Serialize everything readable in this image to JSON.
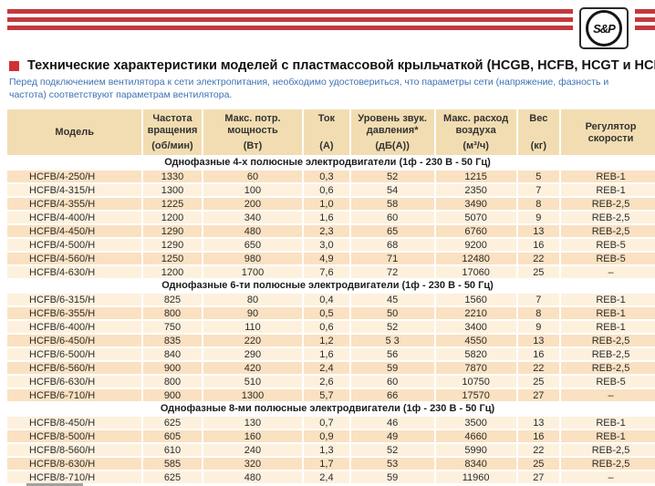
{
  "logo": {
    "text": "S&P"
  },
  "title": {
    "text": "Технические характеристики моделей с пластмассовой крыльчаткой (HCGB, HCFB, HCGT и HCFT)"
  },
  "intro": "Перед подключением вентилятора к сети электропитания, необходимо удостовериться, что параметры сети (напряжение, фазность и частота) соответствуют параметрам вентилятора.",
  "colors": {
    "stripe_red": "#c4383c",
    "bullet_red": "#cf3034",
    "intro_blue": "#3d72b4",
    "header_band": "#f2ddb2",
    "row_peach": "#fae1c1",
    "row_cream": "#fdf1de"
  },
  "table": {
    "columns": [
      {
        "key": "model",
        "label": "Модель",
        "unit": ""
      },
      {
        "key": "rpm",
        "label": "Частота вращения",
        "unit": "(об/мин)"
      },
      {
        "key": "power",
        "label": "Макс. потр. мощность",
        "unit": "(Вт)"
      },
      {
        "key": "current",
        "label": "Ток",
        "unit": "(А)"
      },
      {
        "key": "noise",
        "label": "Уровень звук. давления*",
        "unit": "(дБ(А))"
      },
      {
        "key": "airflow",
        "label": "Макс. расход воздуха",
        "unit": "(м³/ч)"
      },
      {
        "key": "weight",
        "label": "Вес",
        "unit": "(кг)"
      },
      {
        "key": "regulator",
        "label": "Регулятор скорости",
        "unit": ""
      }
    ],
    "sections": [
      {
        "title": "Однофазные 4-х полюсные электродвигатели (1ф - 230 В - 50 Гц)",
        "rows": [
          [
            "HCFB/4-250/H",
            "1330",
            "60",
            "0,3",
            "52",
            "1215",
            "5",
            "REB-1"
          ],
          [
            "HCFB/4-315/H",
            "1300",
            "100",
            "0,6",
            "54",
            "2350",
            "7",
            "REB-1"
          ],
          [
            "HCFB/4-355/H",
            "1225",
            "200",
            "1,0",
            "58",
            "3490",
            "8",
            "REB-2,5"
          ],
          [
            "HCFB/4-400/H",
            "1200",
            "340",
            "1,6",
            "60",
            "5070",
            "9",
            "REB-2,5"
          ],
          [
            "HCFB/4-450/H",
            "1290",
            "480",
            "2,3",
            "65",
            "6760",
            "13",
            "REB-2,5"
          ],
          [
            "HCFB/4-500/H",
            "1290",
            "650",
            "3,0",
            "68",
            "9200",
            "16",
            "REB-5"
          ],
          [
            "HCFB/4-560/H",
            "1250",
            "980",
            "4,9",
            "71",
            "12480",
            "22",
            "REB-5"
          ],
          [
            "HCFB/4-630/H",
            "1200",
            "1700",
            "7,6",
            "72",
            "17060",
            "25",
            "–"
          ]
        ]
      },
      {
        "title": "Однофазные 6-ти полюсные электродвигатели (1ф - 230 В - 50 Гц)",
        "rows": [
          [
            "HCFB/6-315/H",
            "825",
            "80",
            "0,4",
            "45",
            "1560",
            "7",
            "REB-1"
          ],
          [
            "HCFB/6-355/H",
            "800",
            "90",
            "0,5",
            "50",
            "2210",
            "8",
            "REB-1"
          ],
          [
            "HCFB/6-400/H",
            "750",
            "110",
            "0,6",
            "52",
            "3400",
            "9",
            "REB-1"
          ],
          [
            "HCFB/6-450/H",
            "835",
            "220",
            "1,2",
            "5 3",
            "4550",
            "13",
            "REB-2,5"
          ],
          [
            "HCFB/6-500/H",
            "840",
            "290",
            "1,6",
            "56",
            "5820",
            "16",
            "REB-2,5"
          ],
          [
            "HCFB/6-560/H",
            "900",
            "420",
            "2,4",
            "59",
            "7870",
            "22",
            "REB-2,5"
          ],
          [
            "HCFB/6-630/H",
            "800",
            "510",
            "2,6",
            "60",
            "10750",
            "25",
            "REB-5"
          ],
          [
            "HCFB/6-710/H",
            "900",
            "1300",
            "5,7",
            "66",
            "17570",
            "27",
            "–"
          ]
        ]
      },
      {
        "title": "Однофазные 8-ми полюсные электродвигатели (1ф - 230 В - 50 Гц)",
        "rows": [
          [
            "HCFB/8-450/H",
            "625",
            "130",
            "0,7",
            "46",
            "3500",
            "13",
            "REB-1"
          ],
          [
            "HCFB/8-500/H",
            "605",
            "160",
            "0,9",
            "49",
            "4660",
            "16",
            "REB-1"
          ],
          [
            "HCFB/8-560/H",
            "610",
            "240",
            "1,3",
            "52",
            "5990",
            "22",
            "REB-2,5"
          ],
          [
            "HCFB/8-630/H",
            "585",
            "320",
            "1,7",
            "53",
            "8340",
            "25",
            "REB-2,5"
          ],
          [
            "HCFB/8-710/H",
            "625",
            "480",
            "2,4",
            "59",
            "11960",
            "27",
            "–"
          ]
        ]
      }
    ]
  }
}
